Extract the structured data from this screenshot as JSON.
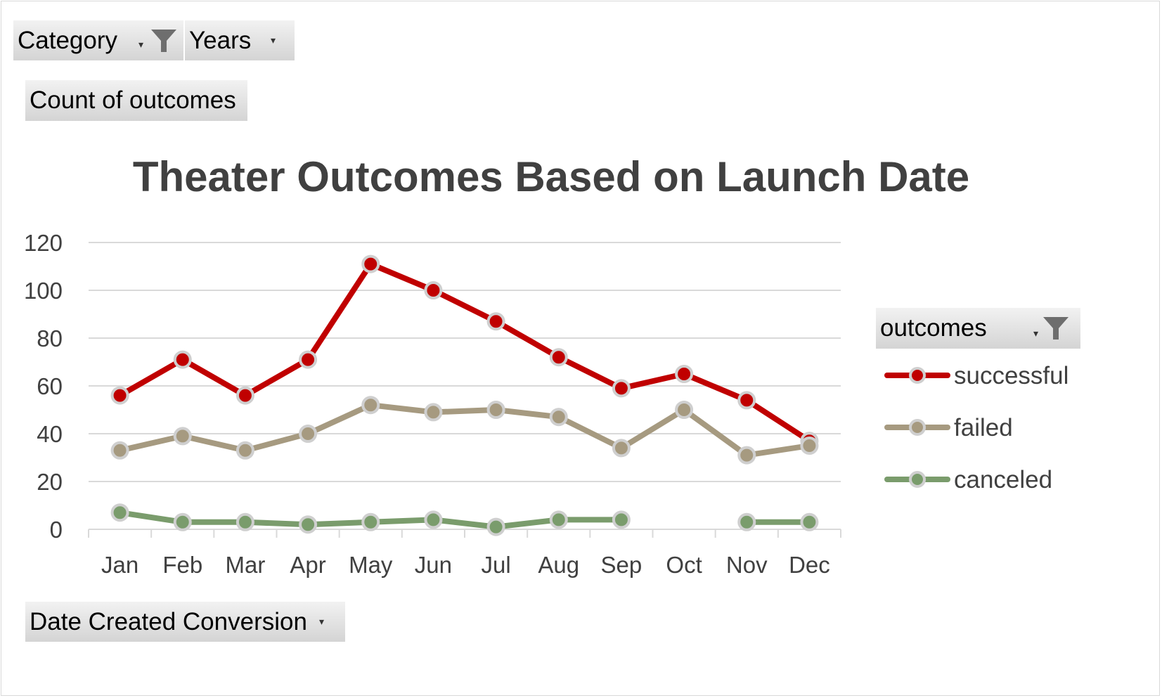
{
  "pivot_fields": {
    "category_label": "Category",
    "years_label": "Years",
    "values_label": "Count of outcomes",
    "axis_label": "Date Created Conversion",
    "legend_label": "outcomes"
  },
  "colors": {
    "successful": "#c00000",
    "failed": "#a69a80",
    "canceled": "#7a9c6c",
    "marker_outline": "#cfcfcf",
    "grid": "#d9d9d9",
    "text": "#404040"
  },
  "chart_data": {
    "type": "line",
    "title": "Theater Outcomes Based on Launch Date",
    "xlabel": "",
    "ylabel": "",
    "categories": [
      "Jan",
      "Feb",
      "Mar",
      "Apr",
      "May",
      "Jun",
      "Jul",
      "Aug",
      "Sep",
      "Oct",
      "Nov",
      "Dec"
    ],
    "ylim": [
      0,
      120
    ],
    "yticks": [
      0,
      20,
      40,
      60,
      80,
      100,
      120
    ],
    "grid": true,
    "legend_position": "right",
    "series": [
      {
        "name": "successful",
        "values": [
          56,
          71,
          56,
          71,
          111,
          100,
          87,
          72,
          59,
          65,
          54,
          37
        ]
      },
      {
        "name": "failed",
        "values": [
          33,
          39,
          33,
          40,
          52,
          49,
          50,
          47,
          34,
          50,
          31,
          35
        ]
      },
      {
        "name": "canceled",
        "values": [
          7,
          3,
          3,
          2,
          3,
          4,
          1,
          4,
          4,
          null,
          3,
          3
        ]
      }
    ]
  }
}
